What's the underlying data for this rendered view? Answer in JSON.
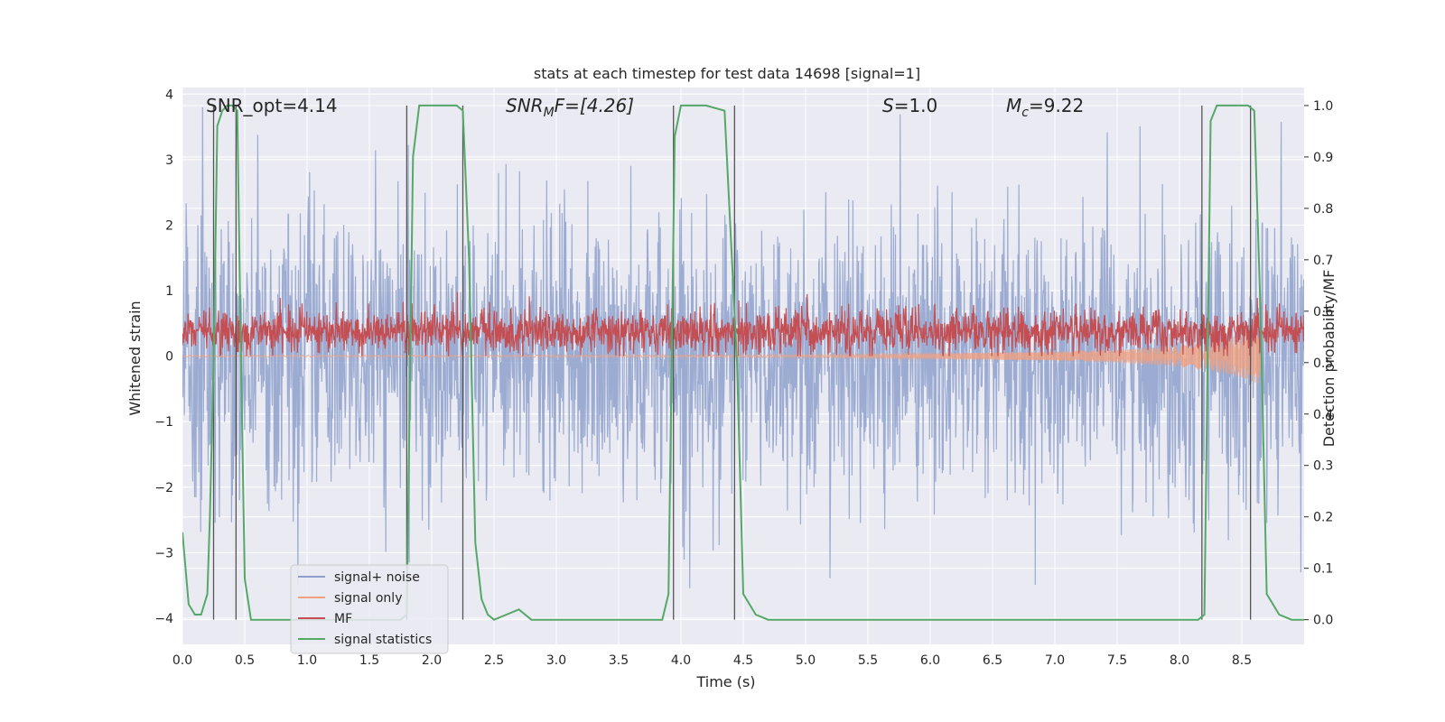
{
  "chart_data": {
    "type": "line",
    "title": "stats at each timestep for test data 14698 [signal=1]",
    "xlabel": "Time (s)",
    "ylabel": "Whitened strain",
    "y2label": "Detection probability/MF",
    "xlim": [
      0,
      9.0
    ],
    "ylim": [
      -4.4,
      4.1
    ],
    "y2lim": [
      -0.048,
      1.035
    ],
    "xticks": [
      "0.0",
      "0.5",
      "1.0",
      "1.5",
      "2.0",
      "2.5",
      "3.0",
      "3.5",
      "4.0",
      "4.5",
      "5.0",
      "5.5",
      "6.0",
      "6.5",
      "7.0",
      "7.5",
      "8.0",
      "8.5"
    ],
    "yticks": [
      "4",
      "3",
      "2",
      "1",
      "0",
      "−1",
      "−2",
      "−3",
      "−4"
    ],
    "y2ticks": [
      "1.0",
      "0.9",
      "0.8",
      "0.7",
      "0.6",
      "0.5",
      "0.4",
      "0.3",
      "0.2",
      "0.1",
      "0.0"
    ],
    "grid": true,
    "legend_position": "lower-left",
    "annotations": {
      "snr_opt": "SNR_opt=4.14",
      "snr_mf_main": "SNR",
      "snr_mf_sub": "M",
      "snr_mf_tail": "F=[4.26]",
      "s_main": "S",
      "s_tail": "=1.0",
      "mc_main": "M",
      "mc_sub": "c",
      "mc_tail": "=9.22"
    },
    "series": [
      {
        "name": "signal+ noise",
        "color": "#8da0cb",
        "description_values": "whitened strain, roughly symmetric noise spanning about -3.5 to 3.8"
      },
      {
        "name": "signal only",
        "color": "#f0a080",
        "x": [
          0,
          5.0,
          6.0,
          7.0,
          7.5,
          8.0,
          8.3,
          8.5,
          8.6,
          8.65
        ],
        "envelope": [
          0.01,
          0.02,
          0.04,
          0.07,
          0.1,
          0.16,
          0.24,
          0.33,
          0.4,
          0.42
        ]
      },
      {
        "name": "MF",
        "color": "#c44e52",
        "description_values": "matched filter output on strain axis, mostly between 0.0 and 0.9"
      },
      {
        "name": "signal statistics",
        "color": "#55a868",
        "x": [
          0,
          0.05,
          0.1,
          0.15,
          0.2,
          0.22,
          0.25,
          0.28,
          0.32,
          0.36,
          0.4,
          0.44,
          0.47,
          0.5,
          0.55,
          0.6,
          1.0,
          1.5,
          1.75,
          1.8,
          1.85,
          1.9,
          2.0,
          2.1,
          2.2,
          2.25,
          2.3,
          2.35,
          2.4,
          2.45,
          2.5,
          2.6,
          2.7,
          2.75,
          2.8,
          3.0,
          3.25,
          3.5,
          3.75,
          3.85,
          3.9,
          3.95,
          4.0,
          4.1,
          4.2,
          4.35,
          4.45,
          4.5,
          4.6,
          4.7,
          5.0,
          6.0,
          7.0,
          8.0,
          8.15,
          8.2,
          8.25,
          8.3,
          8.4,
          8.55,
          8.6,
          8.65,
          8.7,
          8.8,
          8.9,
          9.0
        ],
        "values": [
          0.17,
          0.03,
          0.01,
          0.01,
          0.05,
          0.2,
          0.5,
          0.96,
          0.99,
          1.0,
          1.0,
          0.99,
          0.5,
          0.08,
          0.0,
          0.0,
          0.0,
          0.0,
          0.0,
          0.01,
          0.9,
          1.0,
          1.0,
          1.0,
          1.0,
          0.99,
          0.7,
          0.15,
          0.04,
          0.01,
          0.0,
          0.01,
          0.02,
          0.01,
          0.0,
          0.0,
          0.0,
          0.0,
          0.0,
          0.0,
          0.05,
          0.94,
          1.0,
          1.0,
          1.0,
          0.99,
          0.5,
          0.05,
          0.01,
          0.0,
          0.0,
          0.0,
          0.0,
          0.0,
          0.0,
          0.01,
          0.97,
          1.0,
          1.0,
          1.0,
          0.99,
          0.6,
          0.05,
          0.01,
          0.0,
          0.0
        ]
      }
    ],
    "vertical_lines": [
      0.25,
      0.43,
      1.8,
      2.25,
      3.94,
      4.43,
      8.18,
      8.57
    ]
  }
}
